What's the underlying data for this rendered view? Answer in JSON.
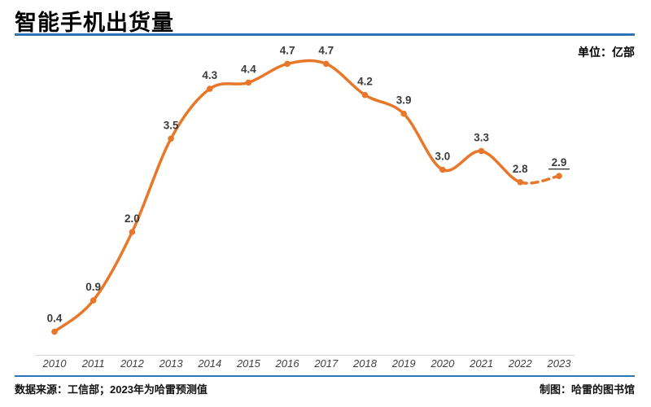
{
  "header": {
    "title": "智能手机出货量",
    "unit_label": "单位：亿部"
  },
  "footer": {
    "source": "数据来源：工信部；2023年为哈雷预测值",
    "credit": "制图：哈雷的图书馆"
  },
  "colors": {
    "line_orange": "#E8772A",
    "rule_blue": "#2E74B5",
    "axis_gray": "#DCDCDC",
    "label_dark": "#3B3B3B",
    "year_gray": "#404040"
  },
  "chart_data": {
    "type": "line",
    "title": "智能手机出货量",
    "unit": "亿部",
    "categories": [
      "2010",
      "2011",
      "2012",
      "2013",
      "2014",
      "2015",
      "2016",
      "2017",
      "2018",
      "2019",
      "2020",
      "2021",
      "2022",
      "2023"
    ],
    "values": [
      0.4,
      0.9,
      2.0,
      3.5,
      4.3,
      4.4,
      4.7,
      4.7,
      4.2,
      3.9,
      3.0,
      3.3,
      2.8,
      2.9
    ],
    "point_labels": [
      "0.4",
      "0.9",
      "2.0",
      "3.5",
      "4.3",
      "4.4",
      "4.7",
      "4.7",
      "4.2",
      "3.9",
      "3.0",
      "3.3",
      "2.8",
      "2.9"
    ],
    "smooth": true,
    "grid": false,
    "legend": false,
    "ylim": [
      0,
      5
    ],
    "dashed_segment_from_index": 12,
    "underlined_label_index": 13,
    "forecast_note": "2023年为哈雷预测值"
  }
}
